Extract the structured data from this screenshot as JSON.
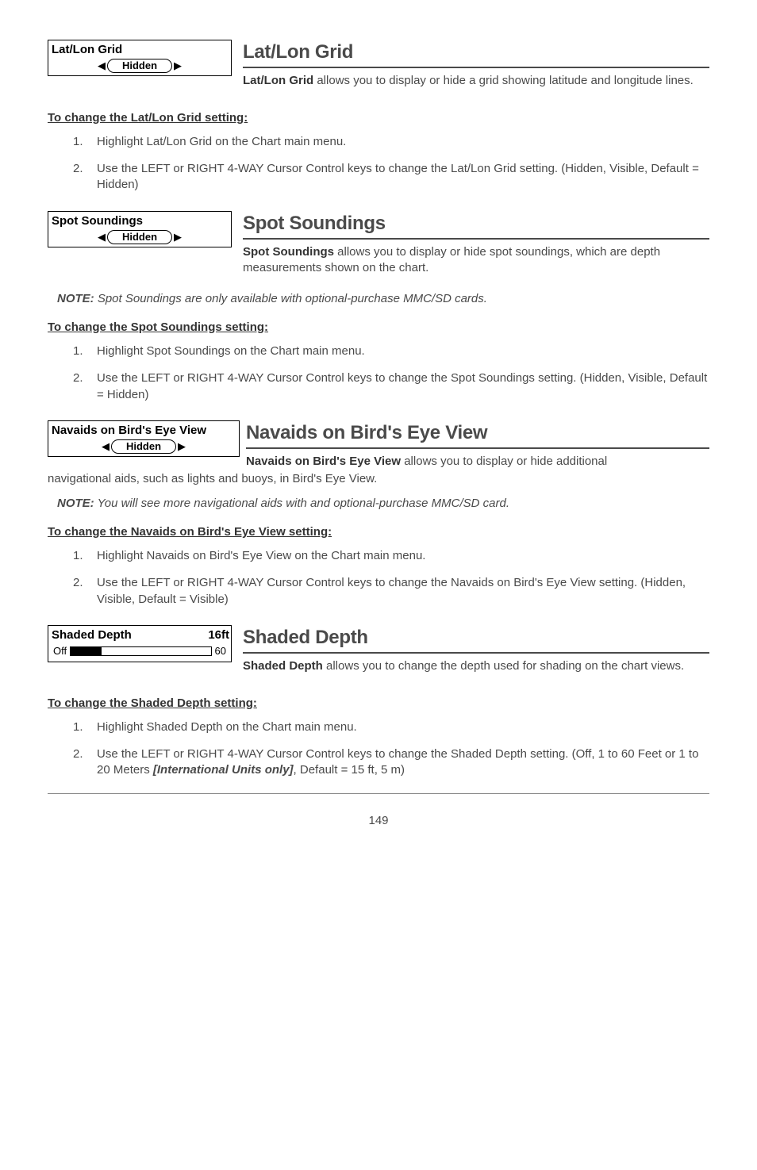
{
  "sections": [
    {
      "menu_label": "Lat/Lon Grid",
      "menu_value": "Hidden",
      "title": "Lat/Lon Grid",
      "intro_bold": "Lat/Lon Grid",
      "intro_rest": " allows you to display or hide a grid showing latitude and longitude lines.",
      "howto": "To change the Lat/Lon Grid setting:",
      "steps": [
        "Highlight Lat/Lon Grid on the Chart main menu.",
        "Use the LEFT or RIGHT 4-WAY Cursor Control keys to change the Lat/Lon Grid setting. (Hidden, Visible, Default = Hidden)"
      ]
    },
    {
      "menu_label": "Spot Soundings",
      "menu_value": "Hidden",
      "title": "Spot Soundings",
      "intro_bold": "Spot Soundings",
      "intro_rest": " allows you to display or hide spot soundings, which are depth measurements shown on the chart.",
      "note_label": "NOTE:",
      "note_text": " Spot Soundings are only available with optional-purchase MMC/SD cards.",
      "howto": "To change the Spot Soundings setting:",
      "steps": [
        "Highlight Spot Soundings on the Chart main menu.",
        "Use the LEFT or RIGHT 4-WAY Cursor Control keys to change the Spot Soundings setting. (Hidden, Visible, Default = Hidden)"
      ]
    },
    {
      "menu_label": "Navaids on Bird's Eye View",
      "menu_value": "Hidden",
      "title": "Navaids on Bird's Eye View",
      "intro_bold": "Navaids on Bird's Eye View",
      "intro_rest": " allows you to display or hide additional",
      "intro_wrap": "navigational aids, such as lights and buoys, in Bird's Eye View.",
      "note_label": "NOTE:",
      "note_text": " You will see more navigational aids with and optional-purchase MMC/SD card.",
      "howto": "To change the Navaids on Bird's Eye View setting:",
      "steps": [
        "Highlight Navaids on Bird's Eye View on the Chart main menu.",
        "Use the LEFT or RIGHT 4-WAY Cursor Control keys to change the Navaids on Bird's Eye View setting. (Hidden, Visible, Default = Visible)"
      ]
    },
    {
      "menu_label": "Shaded Depth",
      "menu_value_right": "16ft",
      "slider_left": "Off",
      "slider_right": "60",
      "slider_fill_pct": 22,
      "title": "Shaded Depth",
      "intro_bold": "Shaded Depth",
      "intro_rest": " allows you to change the depth used for shading on the chart views.",
      "howto": "To change the Shaded Depth setting:",
      "steps": [
        "Highlight Shaded Depth on the Chart main menu.",
        "Use the LEFT or RIGHT 4-WAY Cursor Control keys to change the Shaded Depth setting. (Off, 1 to 60 Feet or 1 to 20 Meters "
      ],
      "step2_italic": "[International Units only]",
      "step2_tail": ", Default = 15 ft, 5 m)"
    }
  ],
  "page": "149"
}
